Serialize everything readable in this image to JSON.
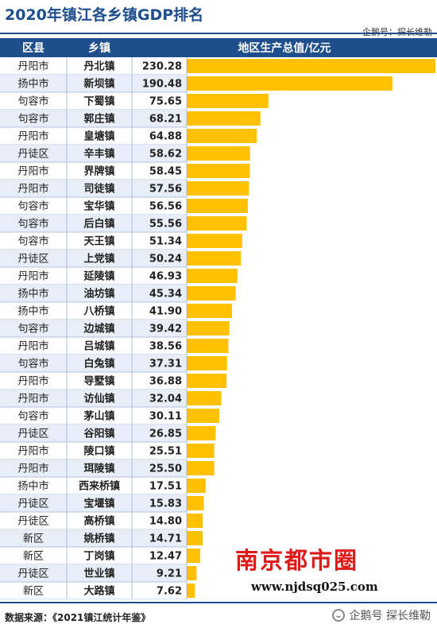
{
  "header": {
    "title": "2020年镇江各乡镇GDP排名",
    "subtitle": "企鹅号：探长维勒"
  },
  "colors": {
    "header_bg": "#1f4e8c",
    "bar": "#ffc000",
    "row_alt": "#e8eef7",
    "grid": "#9db3d6",
    "accent": "#1f4e8c"
  },
  "chart_data": {
    "type": "bar",
    "orientation": "horizontal",
    "columns": [
      "区县",
      "乡镇",
      "地区生产总值/亿元"
    ],
    "xlim": [
      0,
      230.28
    ],
    "rows": [
      {
        "county": "丹阳市",
        "town": "丹北镇",
        "value": 230.28
      },
      {
        "county": "扬中市",
        "town": "新坝镇",
        "value": 190.48
      },
      {
        "county": "句容市",
        "town": "下蜀镇",
        "value": 75.65
      },
      {
        "county": "句容市",
        "town": "郭庄镇",
        "value": 68.21
      },
      {
        "county": "丹阳市",
        "town": "皇塘镇",
        "value": 64.88
      },
      {
        "county": "丹徒区",
        "town": "辛丰镇",
        "value": 58.62
      },
      {
        "county": "丹阳市",
        "town": "界牌镇",
        "value": 58.45
      },
      {
        "county": "丹阳市",
        "town": "司徒镇",
        "value": 57.56
      },
      {
        "county": "句容市",
        "town": "宝华镇",
        "value": 56.56
      },
      {
        "county": "句容市",
        "town": "后白镇",
        "value": 55.56
      },
      {
        "county": "句容市",
        "town": "天王镇",
        "value": 51.34
      },
      {
        "county": "丹徒区",
        "town": "上党镇",
        "value": 50.24
      },
      {
        "county": "丹阳市",
        "town": "延陵镇",
        "value": 46.93
      },
      {
        "county": "扬中市",
        "town": "油坊镇",
        "value": 45.34
      },
      {
        "county": "扬中市",
        "town": "八桥镇",
        "value": 41.9
      },
      {
        "county": "句容市",
        "town": "边城镇",
        "value": 39.42
      },
      {
        "county": "丹阳市",
        "town": "吕城镇",
        "value": 38.56
      },
      {
        "county": "句容市",
        "town": "白兔镇",
        "value": 37.31
      },
      {
        "county": "丹阳市",
        "town": "导墅镇",
        "value": 36.88
      },
      {
        "county": "丹阳市",
        "town": "访仙镇",
        "value": 32.04
      },
      {
        "county": "句容市",
        "town": "茅山镇",
        "value": 30.11
      },
      {
        "county": "丹徒区",
        "town": "谷阳镇",
        "value": 26.85
      },
      {
        "county": "丹阳市",
        "town": "陵口镇",
        "value": 25.51
      },
      {
        "county": "丹阳市",
        "town": "珥陵镇",
        "value": 25.5
      },
      {
        "county": "扬中市",
        "town": "西来桥镇",
        "value": 17.51
      },
      {
        "county": "丹徒区",
        "town": "宝堰镇",
        "value": 15.83
      },
      {
        "county": "丹徒区",
        "town": "高桥镇",
        "value": 14.8
      },
      {
        "county": "新区",
        "town": "姚桥镇",
        "value": 14.71
      },
      {
        "county": "新区",
        "town": "丁岗镇",
        "value": 12.47
      },
      {
        "county": "丹徒区",
        "town": "世业镇",
        "value": 9.21
      },
      {
        "county": "新区",
        "town": "大路镇",
        "value": 7.62
      }
    ]
  },
  "footer": {
    "source": "数据来源：《2021镇江统计年鉴》",
    "brand": "企鹅号 探长维勒"
  },
  "watermark": {
    "logo_text": "南京都市圈",
    "url": "www.njdsq025.com"
  }
}
